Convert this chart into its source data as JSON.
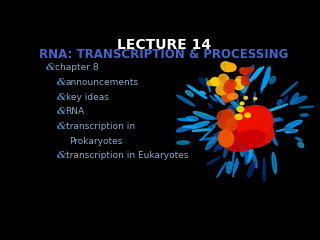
{
  "background_color": "#000000",
  "title_line1": "LECTURE 14",
  "title_line2": "RNA: TRANSCRIPTION & PROCESSING",
  "title_color": "#ffffff",
  "subtitle_color": "#4466cc",
  "bullet_color": "#88aacc",
  "bullet_symbol_color": "#4488bb",
  "bullets": [
    {
      "text": "chapter 8",
      "indent": 0
    },
    {
      "text": "announcements",
      "indent": 1
    },
    {
      "text": "key ideas",
      "indent": 1
    },
    {
      "text": "RNA",
      "indent": 1
    },
    {
      "text": "transcription in",
      "indent": 1
    },
    {
      "text": "Prokaryotes",
      "indent": 2
    },
    {
      "text": "transcription in Eukaryotes",
      "indent": 1
    }
  ],
  "figsize": [
    3.2,
    2.4
  ],
  "dpi": 100
}
